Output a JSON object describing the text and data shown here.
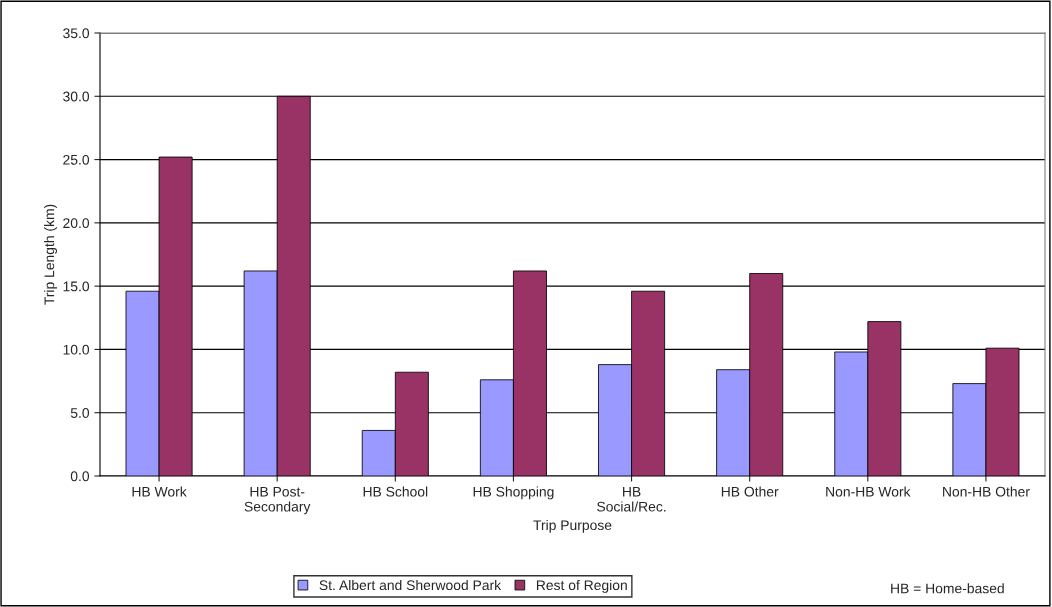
{
  "chart_data": {
    "type": "bar",
    "xlabel": "Trip Purpose",
    "ylabel": "Trip Length (km)",
    "categories": [
      "HB Work",
      "HB Post-\nSecondary",
      "HB School",
      "HB Shopping",
      "HB\nSocial/Rec.",
      "HB Other",
      "Non-HB Work",
      "Non-HB Other"
    ],
    "series": [
      {
        "name": "St. Albert and Sherwood Park",
        "color": "#9999ff",
        "values": [
          14.6,
          16.2,
          3.6,
          7.6,
          8.8,
          8.4,
          9.8,
          7.3
        ]
      },
      {
        "name": "Rest of Region",
        "color": "#993366",
        "values": [
          25.2,
          30.0,
          8.2,
          16.2,
          14.6,
          16.0,
          12.2,
          10.1
        ]
      }
    ],
    "ylim": [
      0,
      35
    ],
    "yticks": [
      {
        "value": 0,
        "label": "0.0"
      },
      {
        "value": 5,
        "label": "5.0"
      },
      {
        "value": 10,
        "label": "10.0"
      },
      {
        "value": 15,
        "label": "15.0"
      },
      {
        "value": 20,
        "label": "20.0"
      },
      {
        "value": 25,
        "label": "25.0"
      },
      {
        "value": 30,
        "label": "30.0"
      },
      {
        "value": 35,
        "label": "35.0"
      }
    ],
    "grid": "y",
    "legend": "bottom",
    "annotations": [
      "HB = Home-based"
    ]
  }
}
